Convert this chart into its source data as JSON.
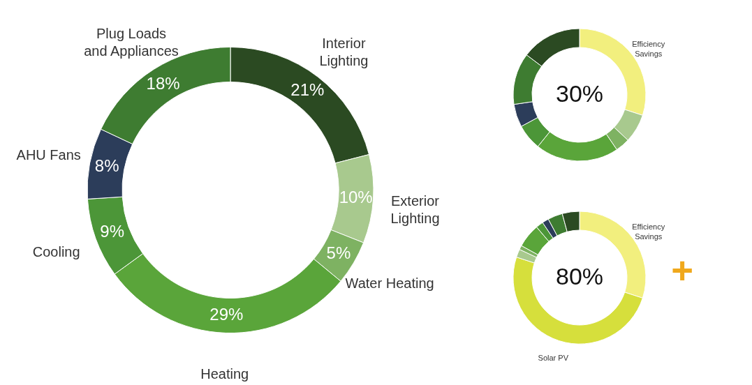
{
  "chart_data": [
    {
      "type": "donut",
      "categories": [
        "Interior Lighting",
        "Exterior Lighting",
        "Water Heating",
        "Heating",
        "Cooling",
        "AHU Fans",
        "Plug Loads and Appliances"
      ],
      "values": [
        21,
        10,
        5,
        29,
        9,
        8,
        18
      ],
      "value_labels": [
        "21%",
        "10%",
        "5%",
        "29%",
        "9%",
        "8%",
        "18%"
      ],
      "colors": [
        "#2b4a22",
        "#a8c98e",
        "#7eb262",
        "#5aa53a",
        "#4c9638",
        "#2c3d5a",
        "#3e7c31"
      ]
    },
    {
      "type": "donut",
      "categories": [
        "Efficiency Savings",
        null,
        null,
        null,
        null,
        null,
        null,
        null
      ],
      "values": [
        30,
        7,
        3.5,
        20.3,
        6.3,
        5.6,
        12.6,
        14.7
      ],
      "colors": [
        "#f2ef7e",
        "#a8c98e",
        "#7eb262",
        "#5aa53a",
        "#4c9638",
        "#2c3d5a",
        "#3e7c31",
        "#2b4a22"
      ],
      "annotations": [
        "30%"
      ]
    },
    {
      "type": "donut",
      "categories": [
        "Efficiency Savings",
        "Solar PV",
        null,
        null,
        null,
        null,
        null,
        null,
        null
      ],
      "values": [
        30,
        50,
        2,
        1,
        5.8,
        1.8,
        1.6,
        3.6,
        4.2
      ],
      "colors": [
        "#f2ef7e",
        "#d6df3c",
        "#a8c98e",
        "#7eb262",
        "#5aa53a",
        "#4c9638",
        "#2c3d5a",
        "#3e7c31",
        "#2b4a22"
      ],
      "annotations": [
        "80%",
        "+"
      ]
    }
  ]
}
